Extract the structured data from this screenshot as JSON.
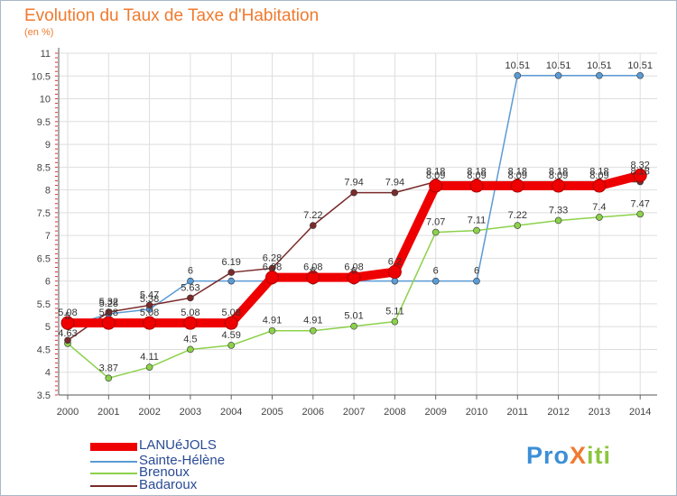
{
  "title": "Evolution du Taux de Taxe d'Habitation",
  "subtitle": "(en %)",
  "logo": {
    "text": "ProXiti",
    "parts": [
      "Pro",
      "X",
      "iti"
    ]
  },
  "chart_data": {
    "type": "line",
    "title": "Evolution du Taux de Taxe d'Habitation",
    "ylabel": "(en %)",
    "x": [
      "2000",
      "2001",
      "2002",
      "2003",
      "2004",
      "2005",
      "2006",
      "2007",
      "2008",
      "2009",
      "2010",
      "2011",
      "2012",
      "2013",
      "2014"
    ],
    "ylim": [
      3.5,
      11
    ],
    "yticks": [
      "3.5",
      "4",
      "4.5",
      "5",
      "5.5",
      "6",
      "6.5",
      "7",
      "7.5",
      "8",
      "8.5",
      "9",
      "9.5",
      "10",
      "10.5",
      "11"
    ],
    "grid": true,
    "legend_position": "bottom-left",
    "series": [
      {
        "name": "LANUéJOLS",
        "color": "#ee0000",
        "values": [
          5.08,
          5.08,
          5.08,
          5.08,
          5.08,
          6.08,
          6.08,
          6.08,
          6.2,
          8.09,
          8.09,
          8.09,
          8.09,
          8.09,
          8.32
        ],
        "labels": [
          "5.08",
          "5.08",
          "5.08",
          "5.08",
          "5.08",
          "6.08",
          "6.08",
          "6.08",
          "6.2",
          "8.09",
          "8.09",
          "8.09",
          "8.09",
          "8.09",
          "8.32"
        ]
      },
      {
        "name": "Sainte-Hélène",
        "color": "#5b9bd5",
        "values": [
          5.0,
          5.28,
          5.38,
          6.0,
          6.0,
          6.0,
          6.0,
          6.0,
          6.0,
          6.0,
          6.0,
          10.51,
          10.51,
          10.51,
          10.51
        ],
        "labels": [
          "5",
          "5.28",
          "5.38",
          "6",
          "",
          "",
          "6",
          "6",
          "",
          "6",
          "6",
          "10.51",
          "10.51",
          "10.51",
          "10.51"
        ]
      },
      {
        "name": "Brenoux",
        "color": "#8cd14a",
        "values": [
          4.63,
          3.87,
          4.11,
          4.5,
          4.59,
          4.91,
          4.91,
          5.01,
          5.11,
          7.07,
          7.11,
          7.22,
          7.33,
          7.4,
          7.47
        ],
        "labels": [
          "4.63",
          "3.87",
          "4.11",
          "4.5",
          "4.59",
          "4.91",
          "4.91",
          "5.01",
          "5.11",
          "7.07",
          "7.11",
          "7.22",
          "7.33",
          "7.4",
          "7.47"
        ]
      },
      {
        "name": "Badaroux",
        "color": "#7a2b2b",
        "values": [
          4.7,
          5.32,
          5.47,
          5.63,
          6.19,
          6.28,
          7.22,
          7.94,
          7.94,
          8.18,
          8.18,
          8.18,
          8.18,
          8.18,
          8.18
        ],
        "labels": [
          "",
          "5.32",
          "5.47",
          "5.63",
          "6.19",
          "6.28",
          "7.22",
          "7.94",
          "7.94",
          "8.18",
          "8.18",
          "8.18",
          "8.18",
          "8.18",
          "8.18"
        ]
      }
    ]
  }
}
